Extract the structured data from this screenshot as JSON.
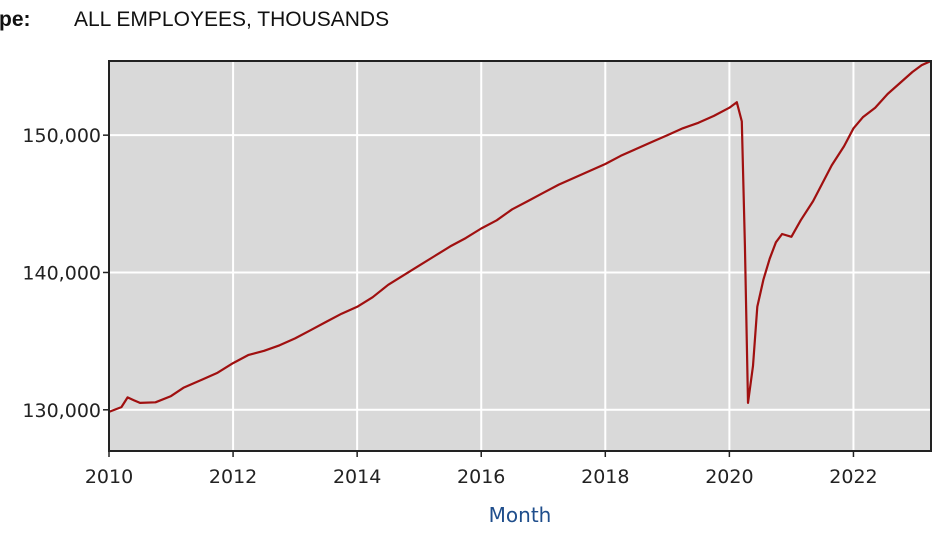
{
  "header": {
    "key_label": "pe:",
    "value": "ALL EMPLOYEES, THOUSANDS"
  },
  "colors": {
    "plot_background": "#d9d9d9",
    "grid": "#ffffff",
    "series": "#a01010",
    "frame": "#222222",
    "axis_title": "#1f4e8c"
  },
  "chart_data": {
    "type": "line",
    "title": "",
    "xlabel": "Month",
    "ylabel": "",
    "xlim": [
      2010.0,
      2023.25
    ],
    "ylim": [
      127000,
      155400
    ],
    "x_ticks": [
      2010,
      2012,
      2014,
      2016,
      2018,
      2020,
      2022
    ],
    "x_tick_labels": [
      "2010",
      "2012",
      "2014",
      "2016",
      "2018",
      "2020",
      "2022"
    ],
    "y_ticks": [
      130000,
      140000,
      150000
    ],
    "y_tick_labels": [
      "130,000",
      "140,000",
      "150,000"
    ],
    "grid": true,
    "legend": "none",
    "series": [
      {
        "points": [
          [
            2010.0,
            129850
          ],
          [
            2010.2,
            130200
          ],
          [
            2010.3,
            130900
          ],
          [
            2010.4,
            130700
          ],
          [
            2010.5,
            130500
          ],
          [
            2010.75,
            130550
          ],
          [
            2011.0,
            131000
          ],
          [
            2011.2,
            131600
          ],
          [
            2011.5,
            132200
          ],
          [
            2011.75,
            132700
          ],
          [
            2012.0,
            133400
          ],
          [
            2012.25,
            134000
          ],
          [
            2012.5,
            134300
          ],
          [
            2012.75,
            134700
          ],
          [
            2013.0,
            135200
          ],
          [
            2013.25,
            135800
          ],
          [
            2013.5,
            136400
          ],
          [
            2013.75,
            137000
          ],
          [
            2014.0,
            137500
          ],
          [
            2014.25,
            138200
          ],
          [
            2014.5,
            139100
          ],
          [
            2014.75,
            139800
          ],
          [
            2015.0,
            140500
          ],
          [
            2015.25,
            141200
          ],
          [
            2015.5,
            141900
          ],
          [
            2015.75,
            142500
          ],
          [
            2016.0,
            143200
          ],
          [
            2016.25,
            143800
          ],
          [
            2016.5,
            144600
          ],
          [
            2016.75,
            145200
          ],
          [
            2017.0,
            145800
          ],
          [
            2017.25,
            146400
          ],
          [
            2017.5,
            146900
          ],
          [
            2017.75,
            147400
          ],
          [
            2018.0,
            147900
          ],
          [
            2018.25,
            148500
          ],
          [
            2018.5,
            149000
          ],
          [
            2018.75,
            149500
          ],
          [
            2019.0,
            150000
          ],
          [
            2019.25,
            150500
          ],
          [
            2019.5,
            150900
          ],
          [
            2019.75,
            151400
          ],
          [
            2020.0,
            152000
          ],
          [
            2020.12,
            152400
          ],
          [
            2020.2,
            151000
          ],
          [
            2020.25,
            142000
          ],
          [
            2020.3,
            130500
          ],
          [
            2020.38,
            133200
          ],
          [
            2020.45,
            137500
          ],
          [
            2020.55,
            139500
          ],
          [
            2020.65,
            141000
          ],
          [
            2020.75,
            142200
          ],
          [
            2020.85,
            142800
          ],
          [
            2021.0,
            142600
          ],
          [
            2021.15,
            143800
          ],
          [
            2021.35,
            145200
          ],
          [
            2021.5,
            146500
          ],
          [
            2021.65,
            147800
          ],
          [
            2021.85,
            149200
          ],
          [
            2022.0,
            150500
          ],
          [
            2022.15,
            151300
          ],
          [
            2022.35,
            152000
          ],
          [
            2022.55,
            153000
          ],
          [
            2022.75,
            153800
          ],
          [
            2022.95,
            154600
          ],
          [
            2023.1,
            155100
          ],
          [
            2023.25,
            155400
          ]
        ]
      }
    ]
  }
}
